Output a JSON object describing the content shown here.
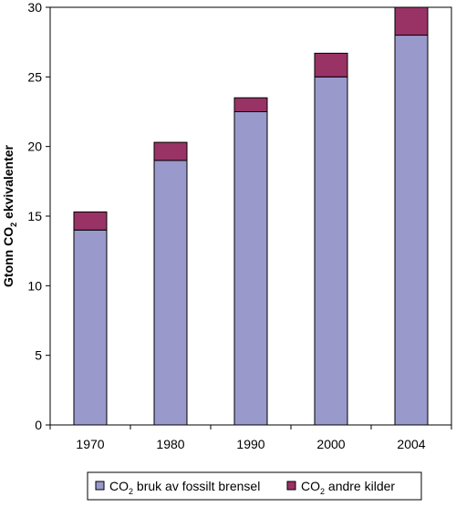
{
  "chart_data": {
    "type": "bar",
    "stacked": true,
    "categories": [
      "1970",
      "1980",
      "1990",
      "2000",
      "2004"
    ],
    "series": [
      {
        "name_main": "CO",
        "name_sub": "2",
        "name_rest": " bruk av fossilt brensel",
        "color": "#9999cc",
        "values": [
          14.0,
          19.0,
          22.5,
          25.0,
          28.0
        ]
      },
      {
        "name_main": "CO",
        "name_sub": "2",
        "name_rest": " andre kilder",
        "color": "#993366",
        "values": [
          1.3,
          1.3,
          1.0,
          1.7,
          2.0
        ]
      }
    ],
    "ylabel_main": "Gtonn CO",
    "ylabel_sub": "2",
    "ylabel_rest": " ekvivalenter",
    "ylim": [
      0,
      30
    ],
    "yticks": [
      "0",
      "5",
      "10",
      "15",
      "20",
      "25",
      "30"
    ],
    "legend_position": "bottom",
    "grid": false
  }
}
